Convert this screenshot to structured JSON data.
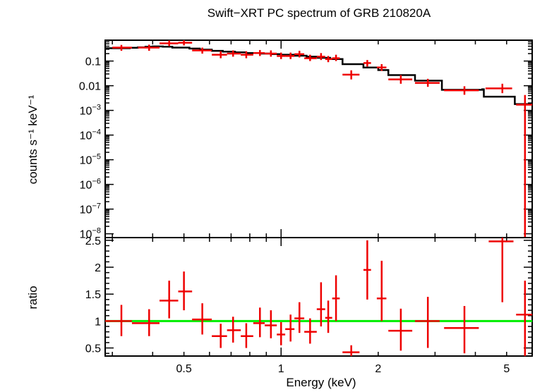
{
  "chart_data": [
    {
      "type": "scatter",
      "title": "Swift−XRT PC spectrum of GRB 210820A",
      "xlabel": "Energy (keV)",
      "ylabel": "counts s⁻¹ keV⁻¹",
      "xscale": "log",
      "yscale": "log",
      "xlim": [
        0.285,
        6.0
      ],
      "ylim": [
        7e-09,
        0.7
      ],
      "y_tick_labels": [
        {
          "v": 0.1,
          "base": "0.1",
          "sup": ""
        },
        {
          "v": 0.01,
          "base": "0.01",
          "sup": ""
        },
        {
          "v": 0.001,
          "base": "10",
          "sup": "−3"
        },
        {
          "v": 0.0001,
          "base": "10",
          "sup": "−4"
        },
        {
          "v": 1e-05,
          "base": "10",
          "sup": "−5"
        },
        {
          "v": 1e-06,
          "base": "10",
          "sup": "−6"
        },
        {
          "v": 1e-07,
          "base": "10",
          "sup": "−7"
        },
        {
          "v": 1e-08,
          "base": "10",
          "sup": "−8"
        }
      ],
      "series": [
        {
          "color": "#ee0000",
          "points": [
            {
              "x": 0.32,
              "xlo": 0.3,
              "xhi": 0.345,
              "y": 0.35,
              "ylo": 0.26,
              "yhi": 0.45
            },
            {
              "x": 0.39,
              "xlo": 0.36,
              "xhi": 0.42,
              "y": 0.35,
              "ylo": 0.26,
              "yhi": 0.46
            },
            {
              "x": 0.45,
              "xlo": 0.42,
              "xhi": 0.48,
              "y": 0.52,
              "ylo": 0.4,
              "yhi": 0.68
            },
            {
              "x": 0.5,
              "xlo": 0.48,
              "xhi": 0.53,
              "y": 0.55,
              "ylo": 0.43,
              "yhi": 0.7
            },
            {
              "x": 0.57,
              "xlo": 0.53,
              "xhi": 0.61,
              "y": 0.27,
              "ylo": 0.2,
              "yhi": 0.35
            },
            {
              "x": 0.65,
              "xlo": 0.61,
              "xhi": 0.68,
              "y": 0.18,
              "ylo": 0.13,
              "yhi": 0.25
            },
            {
              "x": 0.71,
              "xlo": 0.68,
              "xhi": 0.75,
              "y": 0.2,
              "ylo": 0.15,
              "yhi": 0.27
            },
            {
              "x": 0.78,
              "xlo": 0.75,
              "xhi": 0.82,
              "y": 0.18,
              "ylo": 0.13,
              "yhi": 0.25
            },
            {
              "x": 0.86,
              "xlo": 0.82,
              "xhi": 0.89,
              "y": 0.21,
              "ylo": 0.16,
              "yhi": 0.28
            },
            {
              "x": 0.93,
              "xlo": 0.89,
              "xhi": 0.97,
              "y": 0.2,
              "ylo": 0.15,
              "yhi": 0.27
            },
            {
              "x": 1.0,
              "xlo": 0.97,
              "xhi": 1.03,
              "y": 0.16,
              "ylo": 0.12,
              "yhi": 0.22
            },
            {
              "x": 1.07,
              "xlo": 1.03,
              "xhi": 1.1,
              "y": 0.16,
              "ylo": 0.12,
              "yhi": 0.22
            },
            {
              "x": 1.14,
              "xlo": 1.1,
              "xhi": 1.18,
              "y": 0.19,
              "ylo": 0.14,
              "yhi": 0.26
            },
            {
              "x": 1.23,
              "xlo": 1.18,
              "xhi": 1.29,
              "y": 0.13,
              "ylo": 0.1,
              "yhi": 0.18
            },
            {
              "x": 1.33,
              "xlo": 1.29,
              "xhi": 1.37,
              "y": 0.15,
              "ylo": 0.11,
              "yhi": 0.21
            },
            {
              "x": 1.4,
              "xlo": 1.37,
              "xhi": 1.44,
              "y": 0.12,
              "ylo": 0.09,
              "yhi": 0.16
            },
            {
              "x": 1.48,
              "xlo": 1.44,
              "xhi": 1.52,
              "y": 0.13,
              "ylo": 0.1,
              "yhi": 0.18
            },
            {
              "x": 1.65,
              "xlo": 1.55,
              "xhi": 1.75,
              "y": 0.028,
              "ylo": 0.018,
              "yhi": 0.042
            },
            {
              "x": 1.85,
              "xlo": 1.8,
              "xhi": 1.9,
              "y": 0.083,
              "ylo": 0.06,
              "yhi": 0.11
            },
            {
              "x": 2.05,
              "xlo": 1.98,
              "xhi": 2.12,
              "y": 0.055,
              "ylo": 0.04,
              "yhi": 0.075
            },
            {
              "x": 2.35,
              "xlo": 2.15,
              "xhi": 2.55,
              "y": 0.018,
              "ylo": 0.012,
              "yhi": 0.027
            },
            {
              "x": 2.85,
              "xlo": 2.6,
              "xhi": 3.1,
              "y": 0.013,
              "ylo": 0.009,
              "yhi": 0.019
            },
            {
              "x": 3.7,
              "xlo": 3.2,
              "xhi": 4.1,
              "y": 0.0065,
              "ylo": 0.0043,
              "yhi": 0.0095
            },
            {
              "x": 4.85,
              "xlo": 4.3,
              "xhi": 5.2,
              "y": 0.0078,
              "ylo": 0.005,
              "yhi": 0.012
            },
            {
              "x": 5.7,
              "xlo": 5.35,
              "xhi": 6.0,
              "y": 0.0017,
              "ylo": 7e-09,
              "yhi": 0.0042
            }
          ]
        }
      ],
      "model": [
        [
          0.285,
          0.33
        ],
        [
          0.34,
          0.33
        ],
        [
          0.34,
          0.345
        ],
        [
          0.36,
          0.345
        ],
        [
          0.36,
          0.36
        ],
        [
          0.38,
          0.36
        ],
        [
          0.38,
          0.38
        ],
        [
          0.4,
          0.38
        ],
        [
          0.4,
          0.39
        ],
        [
          0.43,
          0.39
        ],
        [
          0.43,
          0.38
        ],
        [
          0.46,
          0.38
        ],
        [
          0.46,
          0.35
        ],
        [
          0.52,
          0.35
        ],
        [
          0.52,
          0.32
        ],
        [
          0.56,
          0.32
        ],
        [
          0.56,
          0.29
        ],
        [
          0.61,
          0.29
        ],
        [
          0.61,
          0.26
        ],
        [
          0.66,
          0.26
        ],
        [
          0.66,
          0.24
        ],
        [
          0.72,
          0.24
        ],
        [
          0.72,
          0.225
        ],
        [
          0.78,
          0.225
        ],
        [
          0.78,
          0.21
        ],
        [
          0.86,
          0.21
        ],
        [
          0.86,
          0.2
        ],
        [
          0.93,
          0.2
        ],
        [
          0.93,
          0.19
        ],
        [
          1.0,
          0.19
        ],
        [
          1.0,
          0.18
        ],
        [
          1.1,
          0.18
        ],
        [
          1.1,
          0.165
        ],
        [
          1.2,
          0.165
        ],
        [
          1.2,
          0.15
        ],
        [
          1.3,
          0.15
        ],
        [
          1.3,
          0.135
        ],
        [
          1.42,
          0.135
        ],
        [
          1.42,
          0.12
        ],
        [
          1.55,
          0.12
        ],
        [
          1.55,
          0.075
        ],
        [
          1.8,
          0.075
        ],
        [
          1.8,
          0.055
        ],
        [
          2.0,
          0.055
        ],
        [
          2.0,
          0.043
        ],
        [
          2.15,
          0.043
        ],
        [
          2.15,
          0.027
        ],
        [
          2.6,
          0.027
        ],
        [
          2.6,
          0.016
        ],
        [
          3.15,
          0.016
        ],
        [
          3.15,
          0.0068
        ],
        [
          4.2,
          0.0068
        ],
        [
          4.2,
          0.0072
        ],
        [
          4.25,
          0.0072
        ],
        [
          4.25,
          0.0036
        ],
        [
          5.3,
          0.0036
        ],
        [
          5.3,
          0.0018
        ],
        [
          6.0,
          0.0018
        ]
      ]
    },
    {
      "type": "scatter",
      "xlabel": "Energy (keV)",
      "ylabel": "ratio",
      "xscale": "log",
      "xlim": [
        0.285,
        6.0
      ],
      "ylim": [
        0.35,
        2.55
      ],
      "x_ticks": [
        0.5,
        1,
        2,
        5
      ],
      "x_tick_labels": [
        "0.5",
        "1",
        "2",
        "5"
      ],
      "y_ticks": [
        0.5,
        1,
        1.5,
        2,
        2.5
      ],
      "y_tick_labels": [
        "0.5",
        "1",
        "1.5",
        "2",
        "2.5"
      ],
      "reference_line": {
        "y": 1,
        "color": "#00ee00"
      },
      "series": [
        {
          "color": "#ee0000",
          "points": [
            {
              "x": 0.32,
              "xlo": 0.285,
              "xhi": 0.345,
              "y": 1.0,
              "ylo": 0.72,
              "yhi": 1.3
            },
            {
              "x": 0.39,
              "xlo": 0.345,
              "xhi": 0.42,
              "y": 0.96,
              "ylo": 0.72,
              "yhi": 1.22
            },
            {
              "x": 0.45,
              "xlo": 0.42,
              "xhi": 0.48,
              "y": 1.38,
              "ylo": 1.05,
              "yhi": 1.75
            },
            {
              "x": 0.5,
              "xlo": 0.48,
              "xhi": 0.53,
              "y": 1.55,
              "ylo": 1.2,
              "yhi": 1.92
            },
            {
              "x": 0.57,
              "xlo": 0.53,
              "xhi": 0.61,
              "y": 1.03,
              "ylo": 0.75,
              "yhi": 1.33
            },
            {
              "x": 0.65,
              "xlo": 0.61,
              "xhi": 0.68,
              "y": 0.72,
              "ylo": 0.5,
              "yhi": 0.95
            },
            {
              "x": 0.71,
              "xlo": 0.68,
              "xhi": 0.75,
              "y": 0.83,
              "ylo": 0.6,
              "yhi": 1.08
            },
            {
              "x": 0.78,
              "xlo": 0.75,
              "xhi": 0.82,
              "y": 0.72,
              "ylo": 0.5,
              "yhi": 0.96
            },
            {
              "x": 0.86,
              "xlo": 0.82,
              "xhi": 0.89,
              "y": 0.96,
              "ylo": 0.7,
              "yhi": 1.25
            },
            {
              "x": 0.93,
              "xlo": 0.89,
              "xhi": 0.97,
              "y": 0.92,
              "ylo": 0.68,
              "yhi": 1.2
            },
            {
              "x": 1.0,
              "xlo": 0.97,
              "xhi": 1.03,
              "y": 0.75,
              "ylo": 0.55,
              "yhi": 0.98
            },
            {
              "x": 1.07,
              "xlo": 1.03,
              "xhi": 1.1,
              "y": 0.85,
              "ylo": 0.62,
              "yhi": 1.12
            },
            {
              "x": 1.14,
              "xlo": 1.1,
              "xhi": 1.18,
              "y": 1.05,
              "ylo": 0.78,
              "yhi": 1.35
            },
            {
              "x": 1.23,
              "xlo": 1.18,
              "xhi": 1.29,
              "y": 0.8,
              "ylo": 0.58,
              "yhi": 1.05
            },
            {
              "x": 1.33,
              "xlo": 1.29,
              "xhi": 1.37,
              "y": 1.22,
              "ylo": 0.9,
              "yhi": 1.72
            },
            {
              "x": 1.4,
              "xlo": 1.37,
              "xhi": 1.44,
              "y": 1.06,
              "ylo": 0.78,
              "yhi": 1.38
            },
            {
              "x": 1.48,
              "xlo": 1.44,
              "xhi": 1.52,
              "y": 1.42,
              "ylo": 1.0,
              "yhi": 1.85
            },
            {
              "x": 1.65,
              "xlo": 1.55,
              "xhi": 1.75,
              "y": 0.42,
              "ylo": 0.35,
              "yhi": 0.55
            },
            {
              "x": 1.85,
              "xlo": 1.8,
              "xhi": 1.9,
              "y": 1.95,
              "ylo": 1.4,
              "yhi": 2.5
            },
            {
              "x": 2.05,
              "xlo": 1.98,
              "xhi": 2.12,
              "y": 1.42,
              "ylo": 1.0,
              "yhi": 2.12
            },
            {
              "x": 2.35,
              "xlo": 2.15,
              "xhi": 2.55,
              "y": 0.82,
              "ylo": 0.45,
              "yhi": 1.23
            },
            {
              "x": 2.85,
              "xlo": 2.6,
              "xhi": 3.1,
              "y": 1.0,
              "ylo": 0.5,
              "yhi": 1.45
            },
            {
              "x": 3.7,
              "xlo": 3.2,
              "xhi": 4.1,
              "y": 0.87,
              "ylo": 0.4,
              "yhi": 1.28
            },
            {
              "x": 4.85,
              "xlo": 4.4,
              "xhi": 5.25,
              "y": 2.48,
              "ylo": 1.35,
              "yhi": 2.55
            },
            {
              "x": 5.7,
              "xlo": 5.35,
              "xhi": 6.0,
              "y": 1.12,
              "ylo": 0.35,
              "yhi": 1.75
            }
          ]
        }
      ]
    }
  ]
}
